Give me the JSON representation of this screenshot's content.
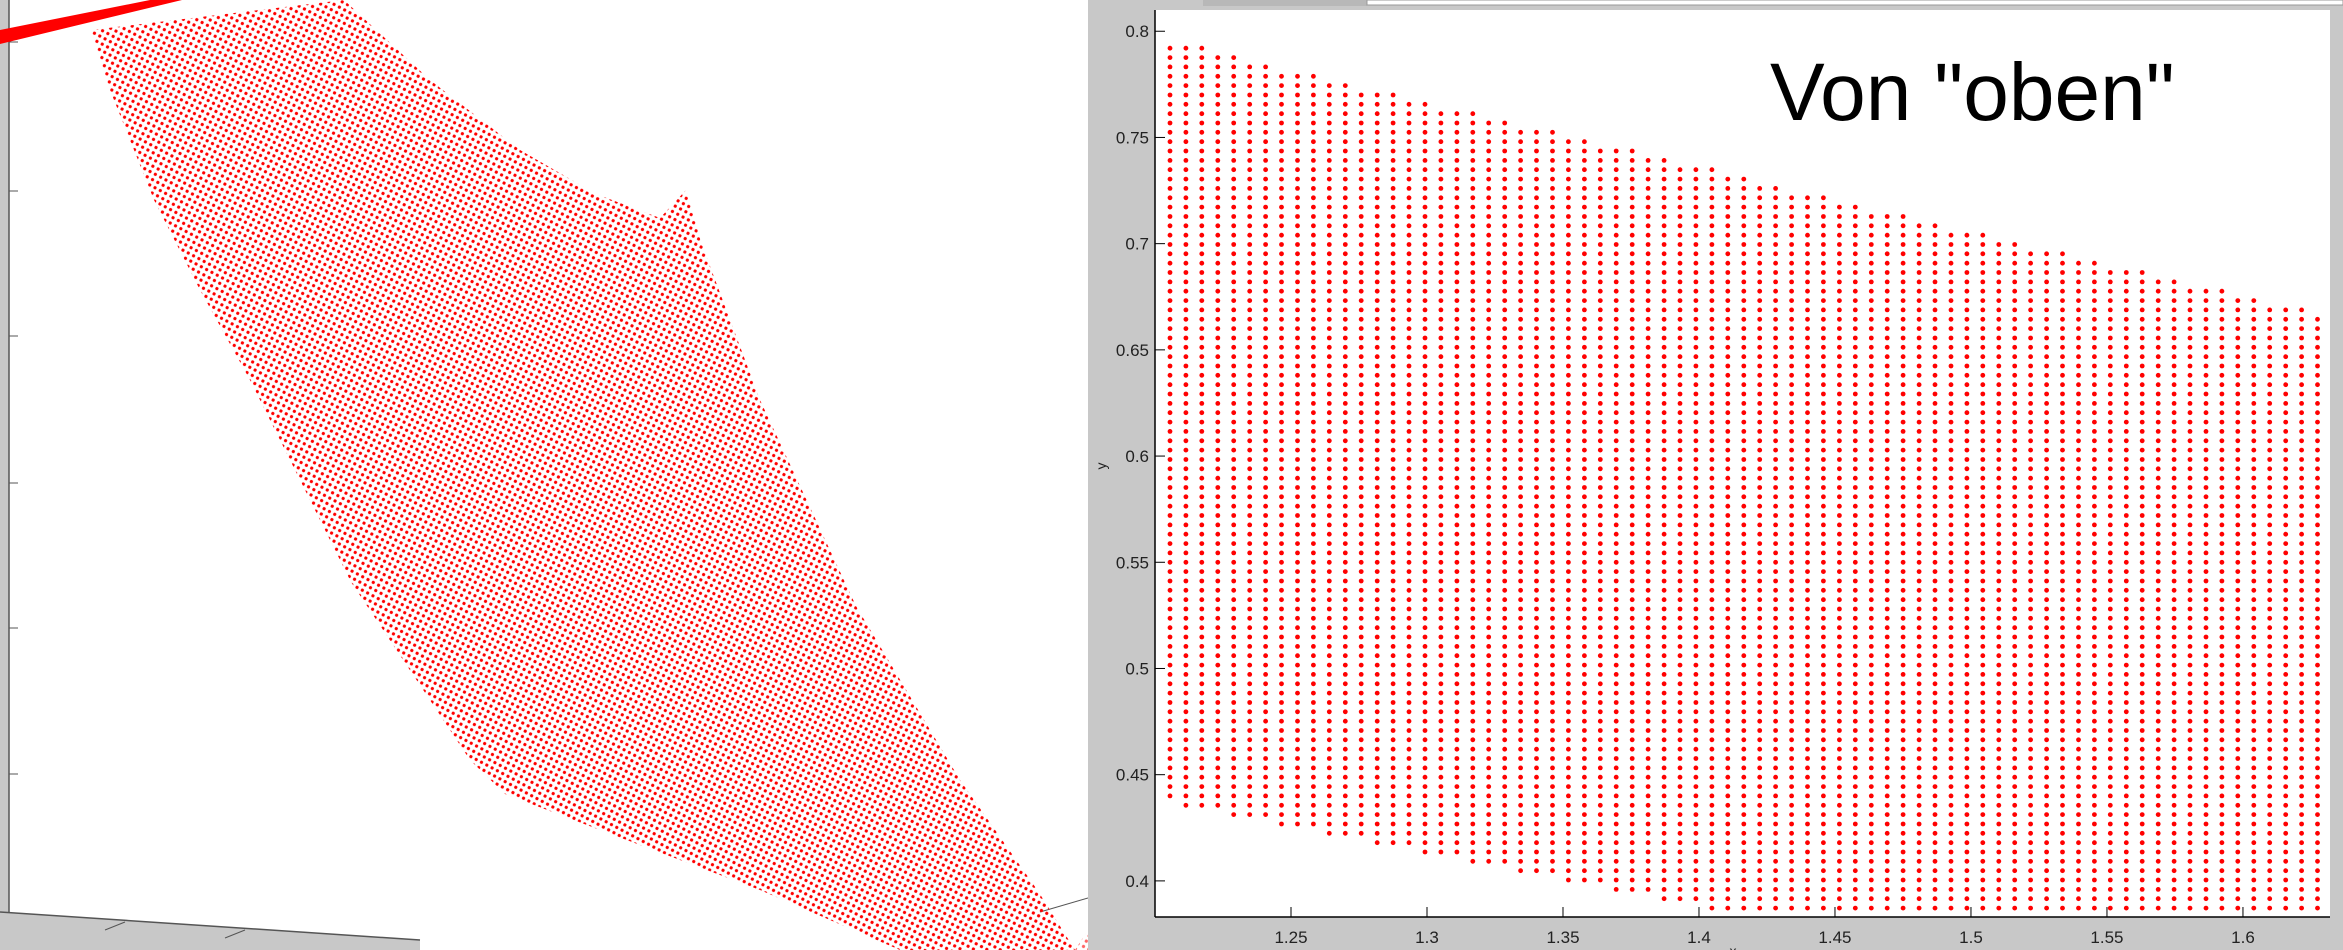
{
  "chart_data": [
    {
      "type": "scatter",
      "view": "3d-perspective",
      "marker_color": "#ff0000",
      "background": "#ffffff",
      "axis_background": "#c8c8c8"
    },
    {
      "type": "scatter",
      "title": "Von \"oben\"",
      "xlabel": "x",
      "ylabel": "y",
      "xlim": [
        1.2,
        1.632
      ],
      "ylim": [
        0.383,
        0.81
      ],
      "xticks": [
        "1.25",
        "1.3",
        "1.35",
        "1.4",
        "1.45",
        "1.5",
        "1.55",
        "1.6"
      ],
      "yticks": [
        "0.4",
        "0.45",
        "0.5",
        "0.55",
        "0.6",
        "0.65",
        "0.7",
        "0.75",
        "0.8"
      ],
      "grid": false,
      "marker_color": "#ff0000",
      "points_grid": {
        "x_start": 1.2055,
        "x_step": 0.00586,
        "x_count": 73,
        "y_step": 0.0044,
        "top_edge": [
          [
            1.2055,
            0.7934
          ],
          [
            1.632,
            0.6635
          ]
        ],
        "bottom_edge": [
          [
            1.2055,
            0.4367
          ],
          [
            1.42,
            0.383
          ]
        ]
      }
    }
  ]
}
